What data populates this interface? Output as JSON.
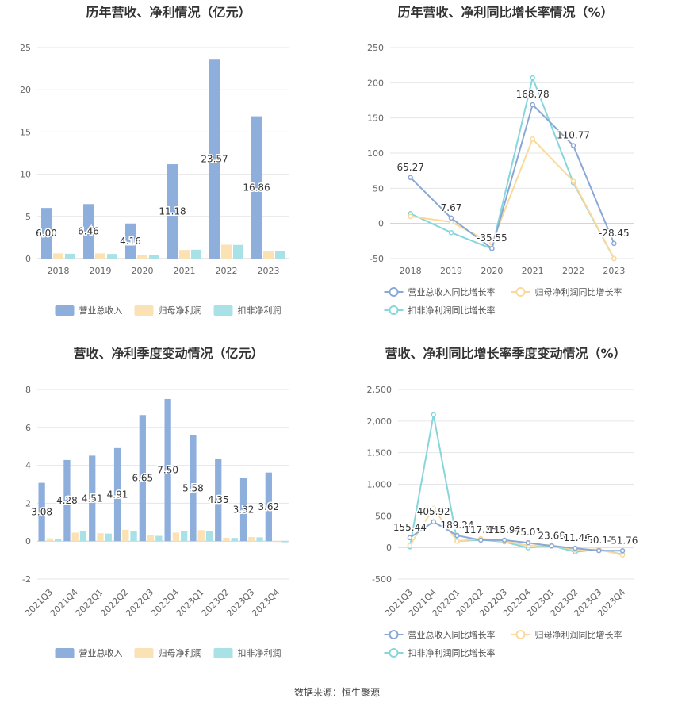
{
  "colors": {
    "revenue": "#8eaedc",
    "net_profit": "#fbe2b5",
    "deducted_profit": "#a9e2e6",
    "revenue_line": "#8aa8d6",
    "net_line": "#fbd99a",
    "deducted_line": "#86d6dc",
    "grid": "#e6e6e6",
    "axis_text": "#666666",
    "title": "#333333"
  },
  "footer": {
    "source": "数据来源：恒生聚源"
  },
  "chart_data": [
    {
      "id": "annual-amount",
      "type": "bar",
      "title": "历年营收、净利情况（亿元）",
      "categories": [
        "2018",
        "2019",
        "2020",
        "2021",
        "2022",
        "2023"
      ],
      "ylim": [
        0,
        25
      ],
      "yticks": [
        0,
        5,
        10,
        15,
        20,
        25
      ],
      "ytick_labels": [
        "0",
        "5",
        "10",
        "15",
        "20",
        "25"
      ],
      "series": [
        {
          "name": "营业总收入",
          "values": [
            6.0,
            6.46,
            4.16,
            11.18,
            23.57,
            16.86
          ],
          "labels": [
            "6.00",
            "6.46",
            "4.16",
            "11.18",
            "23.57",
            "16.86"
          ]
        },
        {
          "name": "归母净利润",
          "values": [
            0.62,
            0.62,
            0.45,
            1.02,
            1.65,
            0.84
          ]
        },
        {
          "name": "扣非净利润",
          "values": [
            0.58,
            0.55,
            0.38,
            1.05,
            1.62,
            0.85
          ]
        }
      ],
      "legend_position": "bottom",
      "grid": true
    },
    {
      "id": "annual-growth",
      "type": "line",
      "title": "历年营收、净利同比增长率情况（%）",
      "categories": [
        "2018",
        "2019",
        "2020",
        "2021",
        "2022",
        "2023"
      ],
      "ylim": [
        -50,
        250
      ],
      "yticks": [
        -50,
        0,
        50,
        100,
        150,
        200,
        250
      ],
      "ytick_labels": [
        "-50",
        "0",
        "50",
        "100",
        "150",
        "200",
        "250"
      ],
      "series": [
        {
          "name": "营业总收入同比增长率",
          "values": [
            65.27,
            7.67,
            -35.55,
            168.78,
            110.77,
            -28.45
          ],
          "labels": [
            "65.27",
            "7.67",
            "-35.55",
            "168.78",
            "110.77",
            "-28.45"
          ]
        },
        {
          "name": "归母净利润同比增长率",
          "values": [
            10,
            2,
            -28,
            120,
            60,
            -50
          ]
        },
        {
          "name": "扣非净利润同比增长率",
          "values": [
            14,
            -13,
            -36,
            207,
            58,
            -50
          ]
        }
      ],
      "legend_position": "bottom",
      "grid": true
    },
    {
      "id": "quarterly-amount",
      "type": "bar",
      "title": "营收、净利季度变动情况（亿元）",
      "categories": [
        "2021Q3",
        "2021Q4",
        "2022Q1",
        "2022Q2",
        "2022Q3",
        "2022Q4",
        "2023Q1",
        "2023Q2",
        "2023Q3",
        "2023Q4"
      ],
      "ylim": [
        -2,
        8
      ],
      "yticks": [
        -2,
        0,
        2,
        4,
        6,
        8
      ],
      "ytick_labels": [
        "-2",
        "0",
        "2",
        "4",
        "6",
        "8"
      ],
      "series": [
        {
          "name": "营业总收入",
          "values": [
            3.08,
            4.28,
            4.51,
            4.91,
            6.65,
            7.5,
            5.58,
            4.35,
            3.32,
            3.62
          ],
          "labels": [
            "3.08",
            "4.28",
            "4.51",
            "4.91",
            "6.65",
            "7.50",
            "5.58",
            "4.35",
            "3.32",
            "3.62"
          ]
        },
        {
          "name": "归母净利润",
          "values": [
            0.15,
            0.45,
            0.42,
            0.6,
            0.3,
            0.45,
            0.58,
            0.18,
            0.22,
            -0.05
          ]
        },
        {
          "name": "扣非净利润",
          "values": [
            0.13,
            0.55,
            0.4,
            0.55,
            0.28,
            0.52,
            0.52,
            0.17,
            0.2,
            -0.06
          ]
        }
      ],
      "legend_position": "bottom",
      "grid": true
    },
    {
      "id": "quarterly-growth",
      "type": "line",
      "title": "营收、净利同比增长率季度变动情况（%）",
      "categories": [
        "2021Q3",
        "2021Q4",
        "2022Q1",
        "2022Q2",
        "2022Q3",
        "2022Q4",
        "2023Q1",
        "2023Q2",
        "2023Q3",
        "2023Q4"
      ],
      "ylim": [
        -500,
        2500
      ],
      "yticks": [
        -500,
        0,
        500,
        1000,
        1500,
        2000,
        2500
      ],
      "ytick_labels": [
        "-500",
        "0",
        "500",
        "1,000",
        "1,500",
        "2,000",
        "2,500"
      ],
      "series": [
        {
          "name": "营业总收入同比增长率",
          "values": [
            155.44,
            405.92,
            189.24,
            117.35,
            115.9,
            75.01,
            23.68,
            -11.46,
            -50.11,
            -51.76
          ],
          "labels": [
            "155.44",
            "405.92",
            "189.24",
            "117.35",
            "115.90",
            "75.01",
            "23.68",
            "-11.46",
            "-50.11",
            "-51.76"
          ]
        },
        {
          "name": "归母净利润同比增长率",
          "values": [
            30,
            620,
            100,
            140,
            100,
            30,
            40,
            -40,
            -30,
            -120
          ]
        },
        {
          "name": "扣非净利润同比增长率",
          "values": [
            10,
            2100,
            100,
            120,
            90,
            -5,
            30,
            -70,
            -30,
            -110
          ]
        }
      ],
      "legend_position": "bottom",
      "grid": true
    }
  ]
}
